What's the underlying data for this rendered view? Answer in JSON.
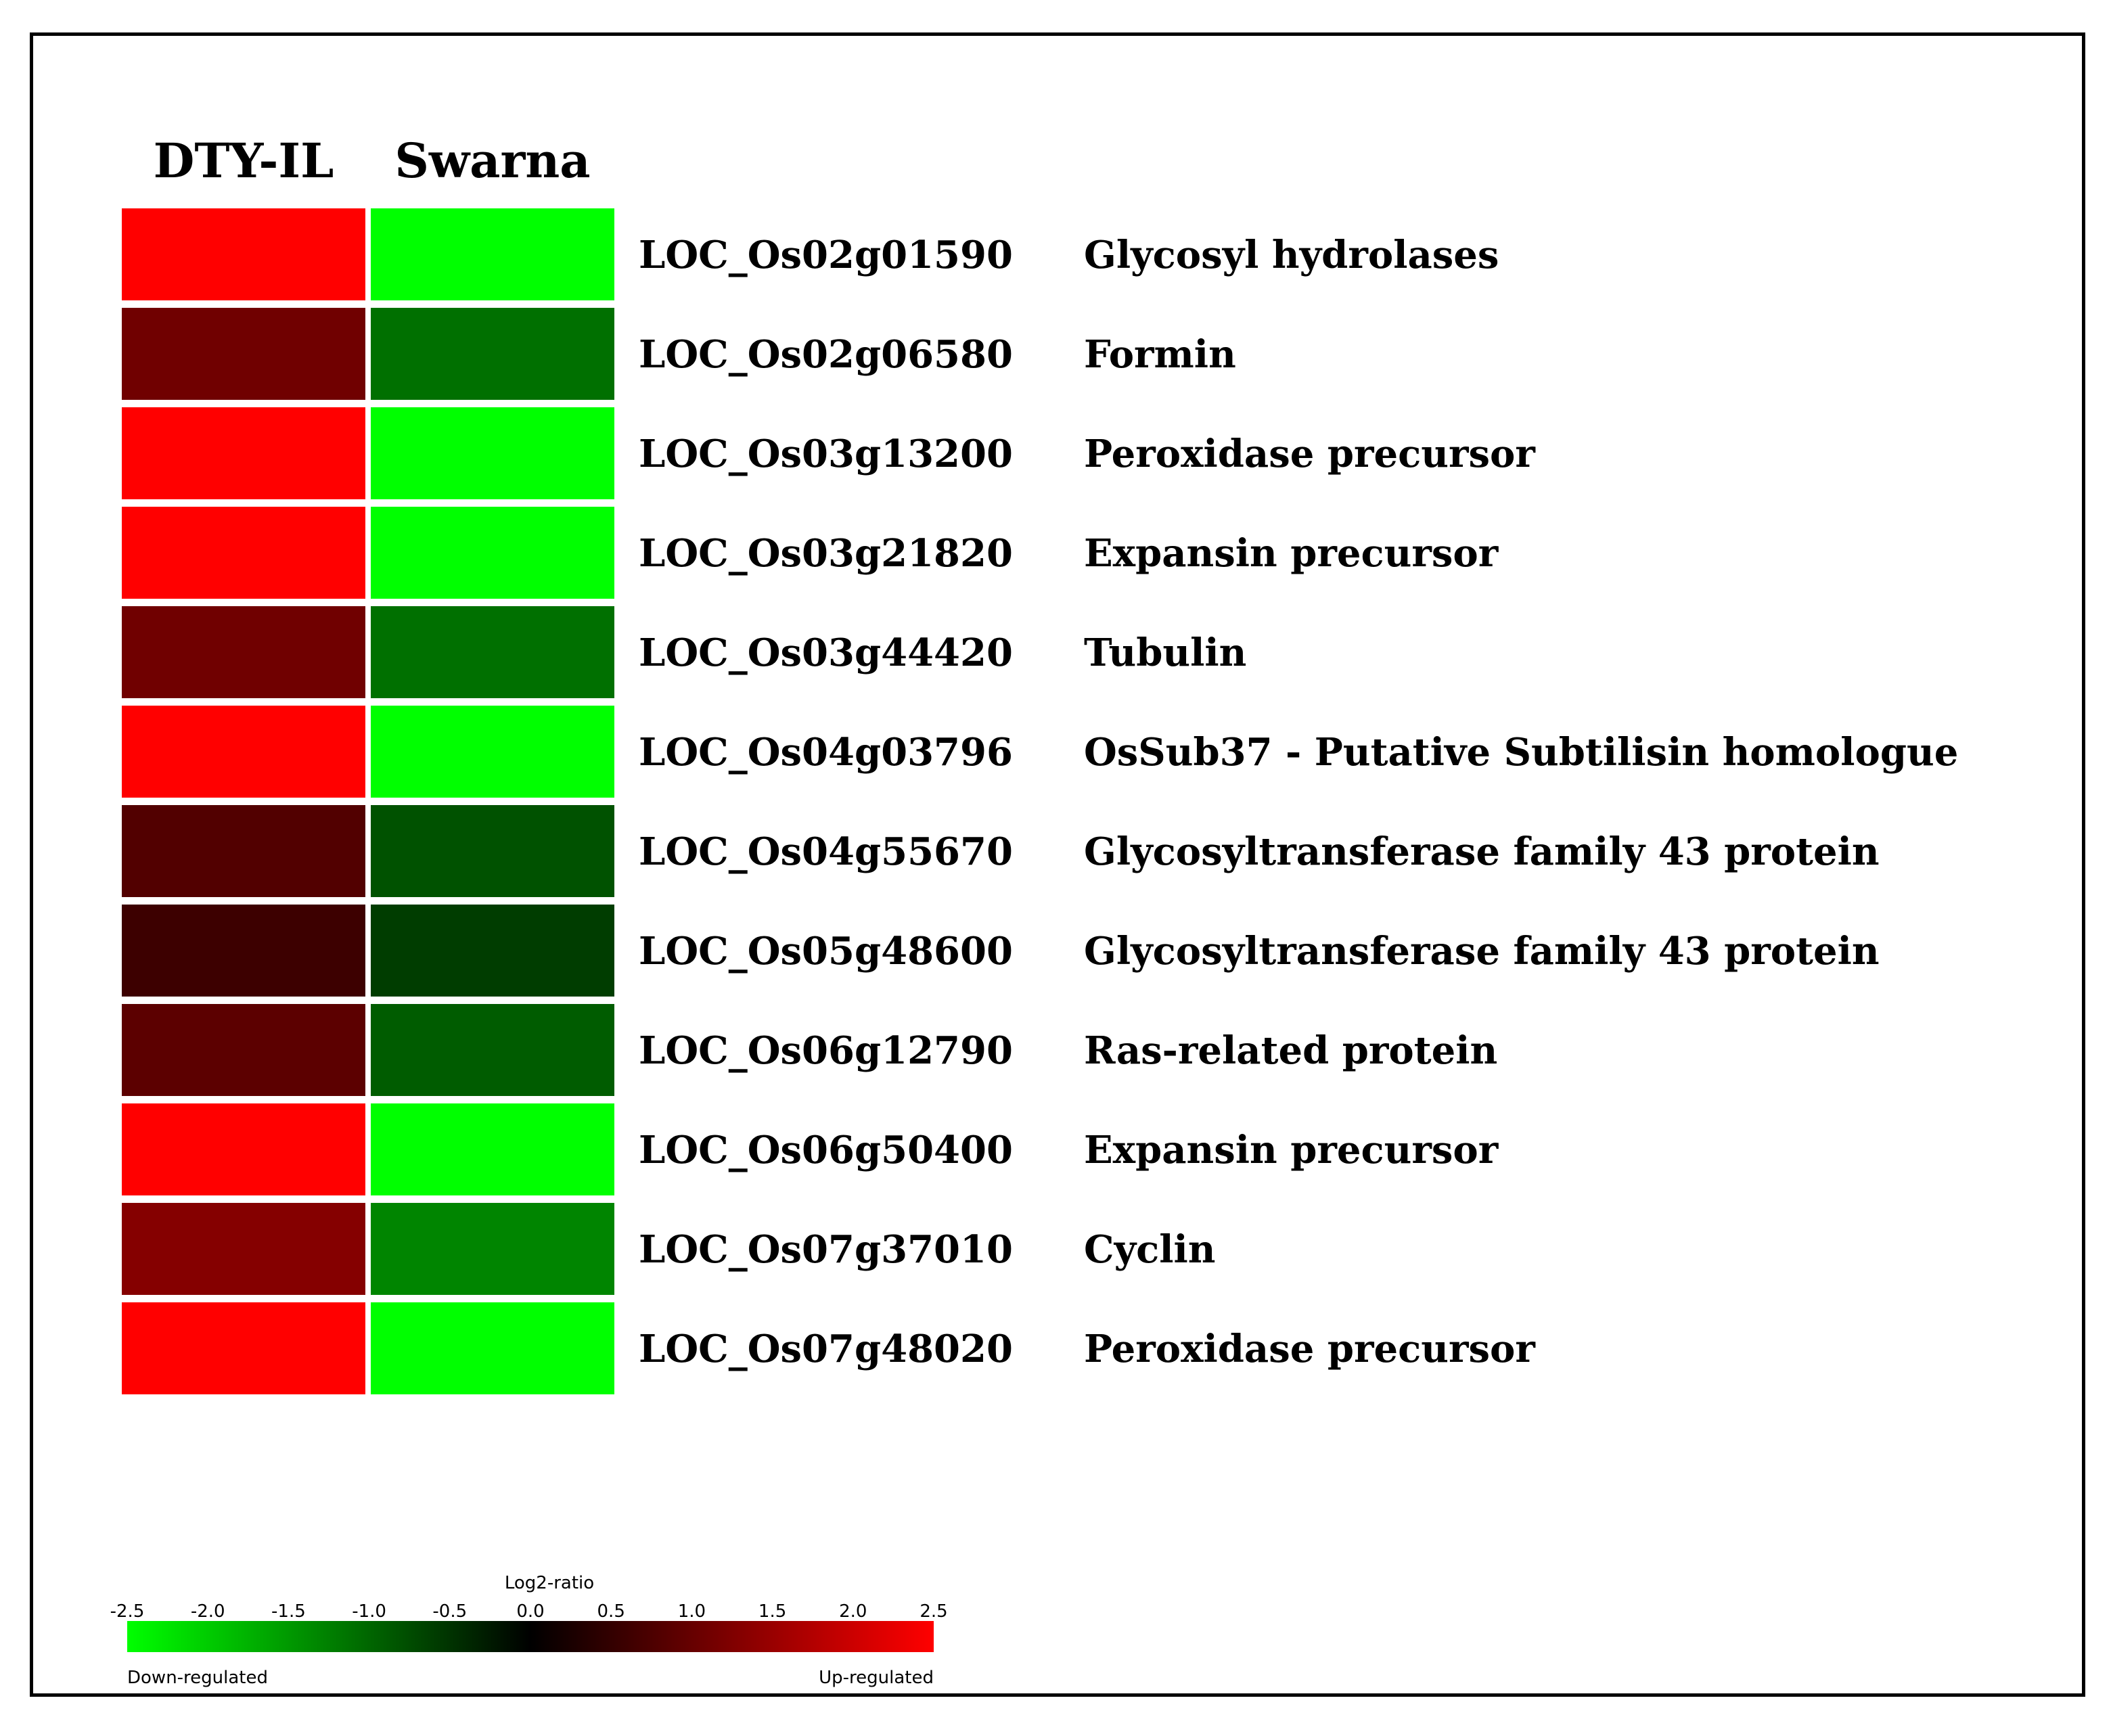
{
  "chart_data": {
    "type": "heatmap",
    "columns": [
      "DTY-IL",
      "Swarna"
    ],
    "rows": [
      {
        "gene": "LOC_Os02g01590",
        "description": "Glycosyl hydrolases",
        "values": [
          2.5,
          -2.5
        ]
      },
      {
        "gene": "LOC_Os02g06580",
        "description": "Formin",
        "values": [
          1.1,
          -1.1
        ]
      },
      {
        "gene": "LOC_Os03g13200",
        "description": "Peroxidase precursor",
        "values": [
          2.5,
          -2.5
        ]
      },
      {
        "gene": "LOC_Os03g21820",
        "description": "Expansin precursor",
        "values": [
          2.5,
          -2.5
        ]
      },
      {
        "gene": "LOC_Os03g44420",
        "description": "Tubulin",
        "values": [
          1.1,
          -1.1
        ]
      },
      {
        "gene": "LOC_Os04g03796",
        "description": "OsSub37 - Putative Subtilisin homologue",
        "values": [
          2.5,
          -2.5
        ]
      },
      {
        "gene": "LOC_Os04g55670",
        "description": "Glycosyltransferase family 43 protein",
        "values": [
          0.8,
          -0.8
        ]
      },
      {
        "gene": "LOC_Os05g48600",
        "description": "Glycosyltransferase family 43 protein",
        "values": [
          0.6,
          -0.6
        ]
      },
      {
        "gene": "LOC_Os06g12790",
        "description": "Ras-related protein",
        "values": [
          0.9,
          -0.9
        ]
      },
      {
        "gene": "LOC_Os06g50400",
        "description": "Expansin precursor",
        "values": [
          2.5,
          -2.5
        ]
      },
      {
        "gene": "LOC_Os07g37010",
        "description": "Cyclin",
        "values": [
          1.3,
          -1.3
        ]
      },
      {
        "gene": "LOC_Os07g48020",
        "description": "Peroxidase precursor",
        "values": [
          2.5,
          -2.5
        ]
      }
    ],
    "color_scale": {
      "title": "Log2-ratio",
      "range": [
        -2.5,
        2.5
      ],
      "ticks": [
        "-2.5",
        "-2.0",
        "-1.5",
        "-1.0",
        "-0.5",
        "0.0",
        "0.5",
        "1.0",
        "1.5",
        "2.0",
        "2.5"
      ],
      "low_label": "Down-regulated",
      "high_label": "Up-regulated",
      "low_color": "#00ff00",
      "mid_color": "#000000",
      "high_color": "#ff0000"
    }
  }
}
